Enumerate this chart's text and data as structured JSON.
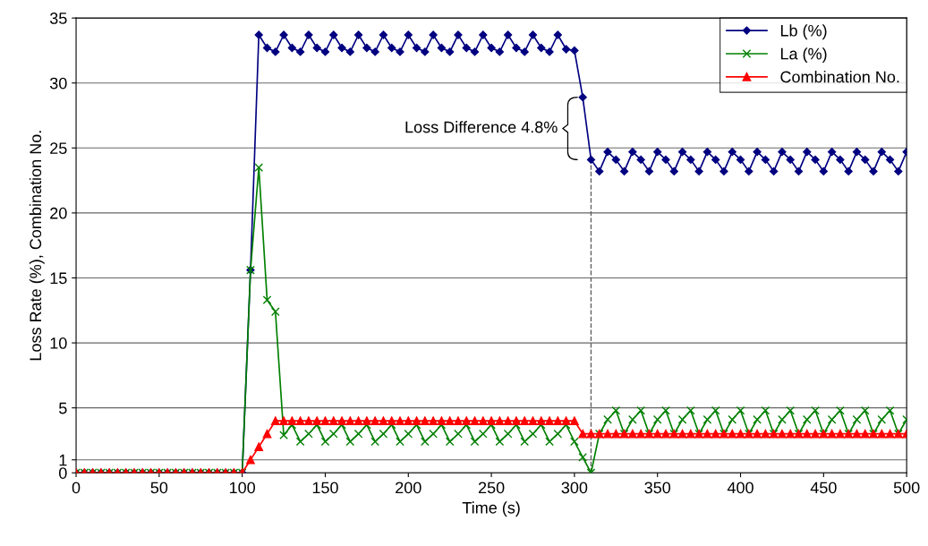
{
  "chart_data": {
    "type": "line",
    "xlabel": "Time (s)",
    "ylabel": "Loss Rate (%), Combination No.",
    "xlim": [
      0,
      500
    ],
    "xticks": [
      0,
      50,
      100,
      150,
      200,
      250,
      300,
      350,
      400,
      450,
      500
    ],
    "ylim": [
      0,
      35
    ],
    "yticks": [
      0,
      1,
      5,
      10,
      15,
      20,
      25,
      30,
      35
    ],
    "grid": "y",
    "legend": "top right",
    "line_style": "solid",
    "x": [
      0,
      5,
      10,
      15,
      20,
      25,
      30,
      35,
      40,
      45,
      50,
      55,
      60,
      65,
      70,
      75,
      80,
      85,
      90,
      95,
      100,
      105,
      110,
      115,
      120,
      125,
      130,
      135,
      140,
      145,
      150,
      155,
      160,
      165,
      170,
      175,
      180,
      185,
      190,
      195,
      200,
      205,
      210,
      215,
      220,
      225,
      230,
      235,
      240,
      245,
      250,
      255,
      260,
      265,
      270,
      275,
      280,
      285,
      290,
      295,
      300,
      305,
      310,
      315,
      320,
      325,
      330,
      335,
      340,
      345,
      350,
      355,
      360,
      365,
      370,
      375,
      380,
      385,
      390,
      395,
      400,
      405,
      410,
      415,
      420,
      425,
      430,
      435,
      440,
      445,
      450,
      455,
      460,
      465,
      470,
      475,
      480,
      485,
      490,
      495,
      500
    ],
    "series": [
      {
        "name": "Lb (%)",
        "color": "#000080",
        "marker": "diamond",
        "values": [
          0,
          0,
          0,
          0,
          0,
          0,
          0,
          0,
          0,
          0,
          0,
          0,
          0,
          0,
          0,
          0,
          0,
          0,
          0,
          0,
          0,
          15.6,
          33.7,
          32.7,
          32.4,
          33.7,
          32.7,
          32.4,
          33.7,
          32.7,
          32.4,
          33.7,
          32.7,
          32.4,
          33.7,
          32.7,
          32.4,
          33.7,
          32.7,
          32.4,
          33.7,
          32.7,
          32.4,
          33.7,
          32.7,
          32.4,
          33.7,
          32.7,
          32.4,
          33.7,
          32.7,
          32.4,
          33.7,
          32.7,
          32.4,
          33.7,
          32.7,
          32.4,
          33.7,
          32.6,
          32.5,
          28.9,
          24.1,
          23.2,
          24.7,
          24.1,
          23.2,
          24.7,
          24.1,
          23.2,
          24.7,
          24.1,
          23.2,
          24.7,
          24.1,
          23.2,
          24.7,
          24.1,
          23.2,
          24.7,
          24.1,
          23.2,
          24.7,
          24.1,
          23.2,
          24.7,
          24.1,
          23.2,
          24.7,
          24.1,
          23.2,
          24.7,
          24.1,
          23.2,
          24.7,
          24.1,
          23.2,
          24.7,
          24.1,
          23.2,
          24.7
        ]
      },
      {
        "name": "La (%)",
        "color": "#008000",
        "marker": "cross",
        "values": [
          0,
          0,
          0,
          0,
          0,
          0,
          0,
          0,
          0,
          0,
          0,
          0,
          0,
          0,
          0,
          0,
          0,
          0,
          0,
          0,
          0,
          15.6,
          23.5,
          13.3,
          12.4,
          2.9,
          3.7,
          2.4,
          3.0,
          3.7,
          2.4,
          3.0,
          3.7,
          2.4,
          3.0,
          3.7,
          2.4,
          3.0,
          3.7,
          2.4,
          3.0,
          3.7,
          2.4,
          3.0,
          3.7,
          2.4,
          3.0,
          3.7,
          2.4,
          3.0,
          3.7,
          2.4,
          3.0,
          3.7,
          2.4,
          3.0,
          3.7,
          2.4,
          3.0,
          3.7,
          2.4,
          1.2,
          0,
          3.0,
          4.1,
          4.8,
          3.0,
          4.1,
          4.8,
          3.0,
          4.1,
          4.8,
          3.0,
          4.1,
          4.8,
          3.0,
          4.1,
          4.8,
          3.0,
          4.1,
          4.8,
          3.0,
          4.1,
          4.8,
          3.0,
          4.1,
          4.8,
          3.0,
          4.1,
          4.8,
          3.0,
          4.1,
          4.8,
          3.0,
          4.1,
          4.8,
          3.0,
          4.1,
          4.8,
          3.0,
          4.1
        ]
      },
      {
        "name": "Combination No.",
        "color": "#ff0000",
        "marker": "triangle",
        "values": [
          0,
          0,
          0,
          0,
          0,
          0,
          0,
          0,
          0,
          0,
          0,
          0,
          0,
          0,
          0,
          0,
          0,
          0,
          0,
          0,
          0,
          1,
          2,
          3,
          4,
          4,
          4,
          4,
          4,
          4,
          4,
          4,
          4,
          4,
          4,
          4,
          4,
          4,
          4,
          4,
          4,
          4,
          4,
          4,
          4,
          4,
          4,
          4,
          4,
          4,
          4,
          4,
          4,
          4,
          4,
          4,
          4,
          4,
          4,
          4,
          4,
          3,
          3,
          3,
          3,
          3,
          3,
          3,
          3,
          3,
          3,
          3,
          3,
          3,
          3,
          3,
          3,
          3,
          3,
          3,
          3,
          3,
          3,
          3,
          3,
          3,
          3,
          3,
          3,
          3,
          3,
          3,
          3,
          3,
          3,
          3,
          3,
          3,
          3,
          3,
          3
        ]
      }
    ],
    "ref_lines": [
      {
        "axis": "x",
        "value": 310,
        "color": "#606060",
        "line_style": "dashed"
      }
    ],
    "annotations": [
      {
        "text": "Loss Difference 4.8%",
        "x": 305,
        "y": 26.5
      }
    ]
  }
}
